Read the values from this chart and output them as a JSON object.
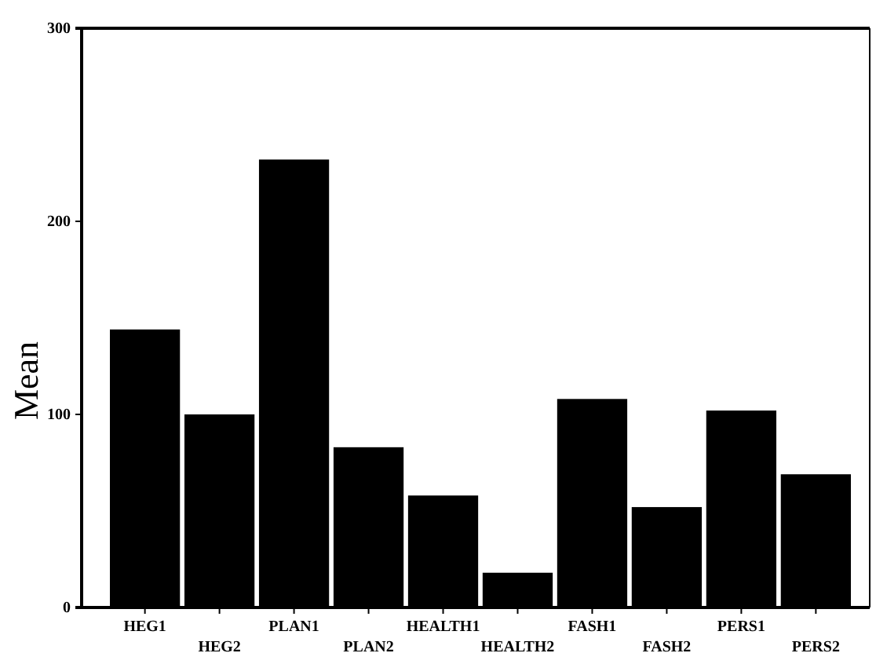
{
  "chart_data": {
    "type": "bar",
    "ylabel": "Mean",
    "categories": [
      "HEG1",
      "HEG2",
      "PLAN1",
      "PLAN2",
      "HEALTH1",
      "HEALTH2",
      "FASH1",
      "FASH2",
      "PERS1",
      "PERS2"
    ],
    "values": [
      144,
      100,
      232,
      83,
      58,
      18,
      108,
      52,
      102,
      69
    ],
    "color": "#000000",
    "ylim": [
      0,
      300
    ],
    "yticks": [
      0,
      100,
      200,
      300
    ],
    "grid": false
  }
}
